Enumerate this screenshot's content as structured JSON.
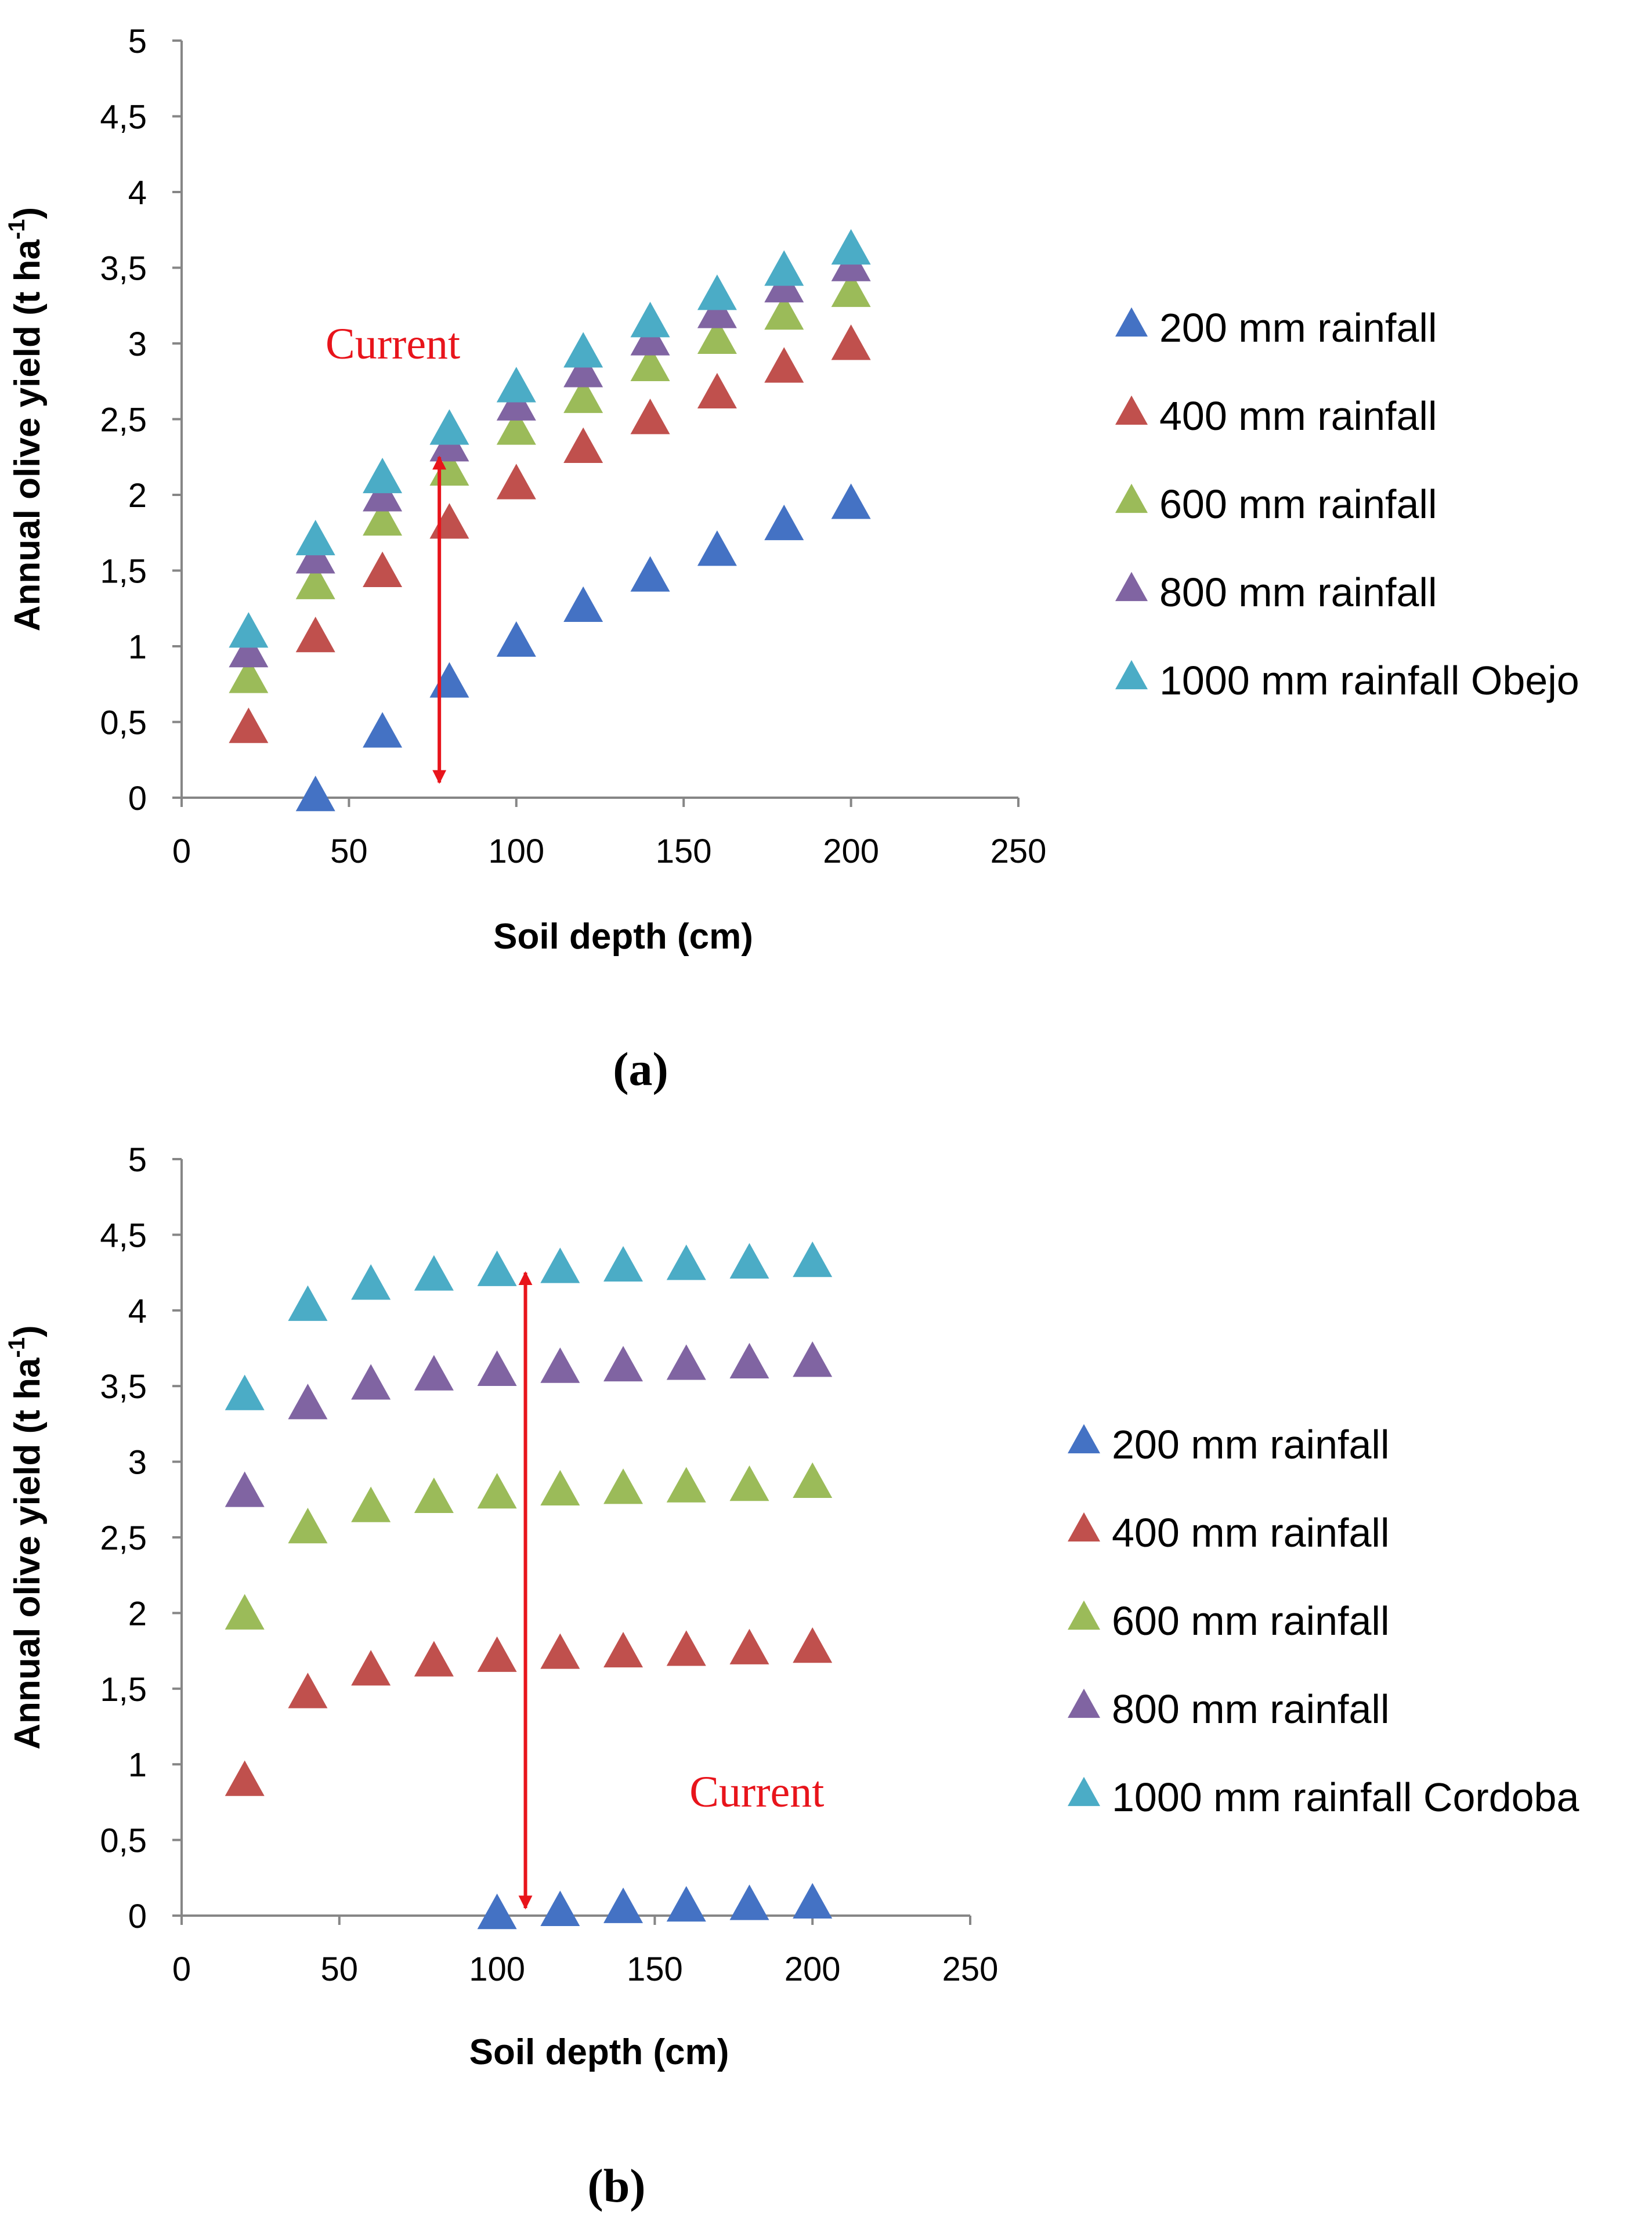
{
  "colors": {
    "200 mm rainfall": "#4472C4",
    "400 mm rainfall": "#C0504D",
    "600 mm rainfall": "#9BBB59",
    "800 mm rainfall": "#8064A2",
    "1000 mm rainfall": "#4BACC6",
    "annotation": "#E8141B"
  },
  "chart_data": [
    {
      "type": "scatter",
      "panel_label": "(a)",
      "xlabel": "Soil depth (cm)",
      "ylabel": "Annual olive yield (t ha-1)",
      "ylabel_main": "Annual olive yield (t ha",
      "ylabel_sup": "-1",
      "ylabel_end": ")",
      "xlim": [
        0,
        250
      ],
      "ylim": [
        0,
        5
      ],
      "xticks": [
        0,
        50,
        100,
        150,
        200,
        250
      ],
      "xtick_labels": [
        "0",
        "50",
        "100",
        "150",
        "200",
        "250"
      ],
      "yticks": [
        0,
        0.5,
        1,
        1.5,
        2,
        2.5,
        3,
        3.5,
        4,
        4.5,
        5
      ],
      "ytick_labels": [
        "0",
        "0,5",
        "1",
        "1,5",
        "2",
        "2,5",
        "3",
        "3,5",
        "4",
        "4,5",
        "5"
      ],
      "legend_position": "right",
      "annotation": {
        "text": "Current",
        "arrow_x": 77,
        "arrow_y": [
          0.1,
          2.25
        ],
        "text_x": 43,
        "text_y": 2.9
      },
      "series": [
        {
          "name": "200 mm rainfall",
          "x": [
            40,
            60,
            80,
            100,
            120,
            140,
            160,
            180,
            200
          ],
          "y": [
            0,
            0.42,
            0.75,
            1.02,
            1.25,
            1.45,
            1.62,
            1.79,
            1.93
          ]
        },
        {
          "name": "400 mm rainfall",
          "x": [
            20,
            40,
            60,
            80,
            100,
            120,
            140,
            160,
            180,
            200
          ],
          "y": [
            0.45,
            1.05,
            1.48,
            1.8,
            2.06,
            2.3,
            2.49,
            2.66,
            2.83,
            2.98
          ]
        },
        {
          "name": "600 mm rainfall",
          "x": [
            20,
            40,
            60,
            80,
            100,
            120,
            140,
            160,
            180,
            200
          ],
          "y": [
            0.78,
            1.4,
            1.82,
            2.15,
            2.42,
            2.63,
            2.84,
            3.02,
            3.18,
            3.33
          ]
        },
        {
          "name": "800 mm rainfall",
          "x": [
            20,
            40,
            60,
            80,
            100,
            120,
            140,
            160,
            180,
            200
          ],
          "y": [
            0.95,
            1.57,
            1.98,
            2.31,
            2.58,
            2.8,
            3.01,
            3.19,
            3.36,
            3.5
          ]
        },
        {
          "name": "1000 mm rainfall",
          "legend_label": "1000 mm rainfall Obejo",
          "x": [
            20,
            40,
            60,
            80,
            100,
            120,
            140,
            160,
            180,
            200
          ],
          "y": [
            1.08,
            1.69,
            2.1,
            2.42,
            2.7,
            2.93,
            3.13,
            3.31,
            3.47,
            3.61
          ]
        }
      ]
    },
    {
      "type": "scatter",
      "panel_label": "(b)",
      "xlabel": "Soil depth (cm)",
      "ylabel": "Annual olive yield (t ha-1)",
      "ylabel_main": "Annual olive yield (t ha",
      "ylabel_sup": "-1",
      "ylabel_end": ")",
      "xlim": [
        0,
        250
      ],
      "ylim": [
        0,
        5
      ],
      "xticks": [
        0,
        50,
        100,
        150,
        200,
        250
      ],
      "xtick_labels": [
        "0",
        "50",
        "100",
        "150",
        "200",
        "250"
      ],
      "yticks": [
        0,
        0.5,
        1,
        1.5,
        2,
        2.5,
        3,
        3.5,
        4,
        4.5,
        5
      ],
      "ytick_labels": [
        "0",
        "0,5",
        "1",
        "1,5",
        "2",
        "2,5",
        "3",
        "3,5",
        "4",
        "4,5",
        "5"
      ],
      "legend_position": "right",
      "annotation": {
        "text": "Current",
        "arrow_x": 109,
        "arrow_y": [
          0.05,
          4.25
        ],
        "text_x": 161,
        "text_y": 0.72
      },
      "series": [
        {
          "name": "200 mm rainfall",
          "x": [
            100,
            120,
            140,
            160,
            180,
            200
          ],
          "y": [
            0,
            0.02,
            0.04,
            0.05,
            0.06,
            0.07
          ]
        },
        {
          "name": "400 mm rainfall",
          "x": [
            20,
            40,
            60,
            80,
            100,
            120,
            140,
            160,
            180,
            200
          ],
          "y": [
            0.88,
            1.46,
            1.61,
            1.67,
            1.7,
            1.72,
            1.73,
            1.74,
            1.75,
            1.76
          ]
        },
        {
          "name": "600 mm rainfall",
          "x": [
            20,
            40,
            60,
            80,
            100,
            120,
            140,
            160,
            180,
            200
          ],
          "y": [
            1.98,
            2.55,
            2.69,
            2.75,
            2.78,
            2.8,
            2.81,
            2.82,
            2.83,
            2.85
          ]
        },
        {
          "name": "800 mm rainfall",
          "x": [
            20,
            40,
            60,
            80,
            100,
            120,
            140,
            160,
            180,
            200
          ],
          "y": [
            2.79,
            3.37,
            3.5,
            3.56,
            3.59,
            3.61,
            3.62,
            3.63,
            3.64,
            3.65
          ]
        },
        {
          "name": "1000 mm rainfall",
          "legend_label": "1000 mm rainfall Cordoba",
          "x": [
            20,
            40,
            60,
            80,
            100,
            120,
            140,
            160,
            180,
            200
          ],
          "y": [
            3.43,
            4.02,
            4.16,
            4.22,
            4.25,
            4.27,
            4.28,
            4.29,
            4.3,
            4.31
          ]
        }
      ]
    }
  ]
}
